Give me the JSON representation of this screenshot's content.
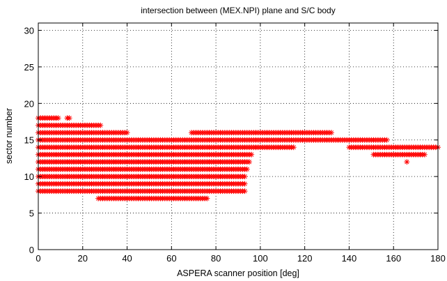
{
  "chart_data": {
    "type": "scatter",
    "title": "intersection between (MEX.NPI) plane and S/C body",
    "xlabel": "ASPERA scanner position [deg]",
    "ylabel": "sector number",
    "xlim": [
      0,
      180
    ],
    "ylim": [
      0,
      31
    ],
    "xticks": [
      "0",
      "20",
      "40",
      "60",
      "80",
      "100",
      "120",
      "140",
      "160",
      "180"
    ],
    "yticks": [
      "0",
      "5",
      "10",
      "15",
      "20",
      "25",
      "30"
    ],
    "grid": true,
    "marker": "asterisk",
    "marker_color": "#ff0000",
    "x_step_deg": 1,
    "rows": [
      {
        "y": 7,
        "ranges": [
          [
            27,
            76
          ]
        ]
      },
      {
        "y": 8,
        "ranges": [
          [
            0,
            93
          ]
        ]
      },
      {
        "y": 9,
        "ranges": [
          [
            0,
            93
          ]
        ]
      },
      {
        "y": 10,
        "ranges": [
          [
            0,
            93
          ]
        ]
      },
      {
        "y": 11,
        "ranges": [
          [
            0,
            94
          ]
        ]
      },
      {
        "y": 12,
        "ranges": [
          [
            0,
            95
          ]
        ],
        "points": [
          166
        ]
      },
      {
        "y": 13,
        "ranges": [
          [
            0,
            96
          ],
          [
            151,
            174
          ]
        ]
      },
      {
        "y": 14,
        "ranges": [
          [
            0,
            115
          ],
          [
            140,
            180
          ]
        ]
      },
      {
        "y": 15,
        "ranges": [
          [
            0,
            157
          ]
        ]
      },
      {
        "y": 16,
        "ranges": [
          [
            0,
            40
          ],
          [
            69,
            132
          ]
        ]
      },
      {
        "y": 17,
        "ranges": [
          [
            0,
            28
          ]
        ]
      },
      {
        "y": 18,
        "ranges": [
          [
            0,
            9
          ]
        ],
        "points": [
          13,
          14
        ]
      }
    ]
  }
}
